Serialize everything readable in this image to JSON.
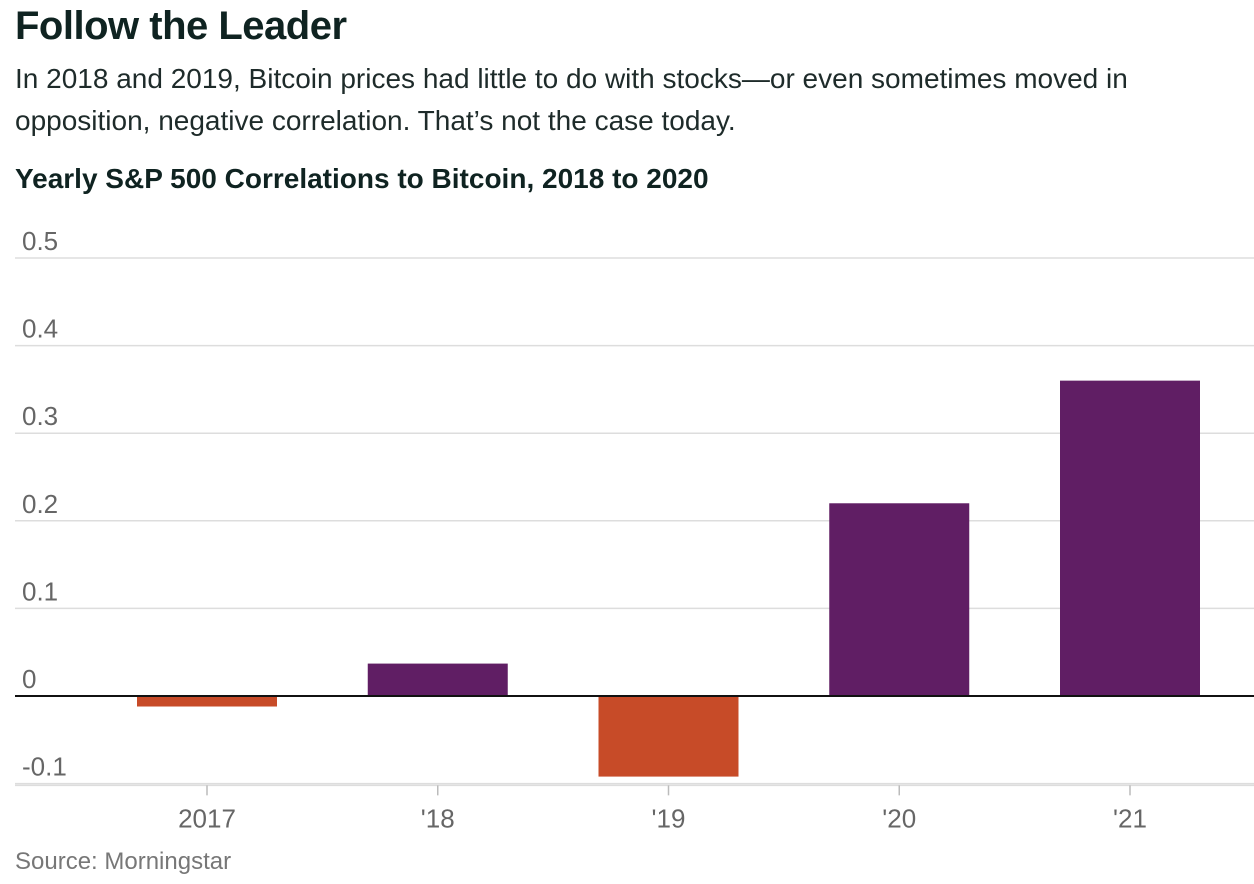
{
  "headline": "Follow the Leader",
  "dek": "In 2018 and 2019, Bitcoin prices had little to do with stocks—or even sometimes moved in opposition, negative correlation. That’s not the case today.",
  "chart_data": {
    "type": "bar",
    "title": "Yearly S&P 500 Correlations to Bitcoin, 2018 to 2020",
    "xlabel": "",
    "ylabel": "",
    "categories": [
      "2017",
      "'18",
      "'19",
      "'20",
      "'21"
    ],
    "values": [
      -0.012,
      0.037,
      -0.092,
      0.22,
      0.36
    ],
    "yticks": [
      -0.1,
      0,
      0.1,
      0.2,
      0.3,
      0.4,
      0.5
    ],
    "ytick_labels": [
      "-0.1",
      "0",
      "0.1",
      "0.2",
      "0.3",
      "0.4",
      "0.5"
    ],
    "ylim": [
      -0.102,
      0.5
    ],
    "grid": true,
    "colors": {
      "positive": "#601e64",
      "negative": "#c74b28",
      "grid": "#dddddd",
      "zero_line": "#111111",
      "tick_label": "#666666"
    }
  },
  "source": "Source: Morningstar"
}
